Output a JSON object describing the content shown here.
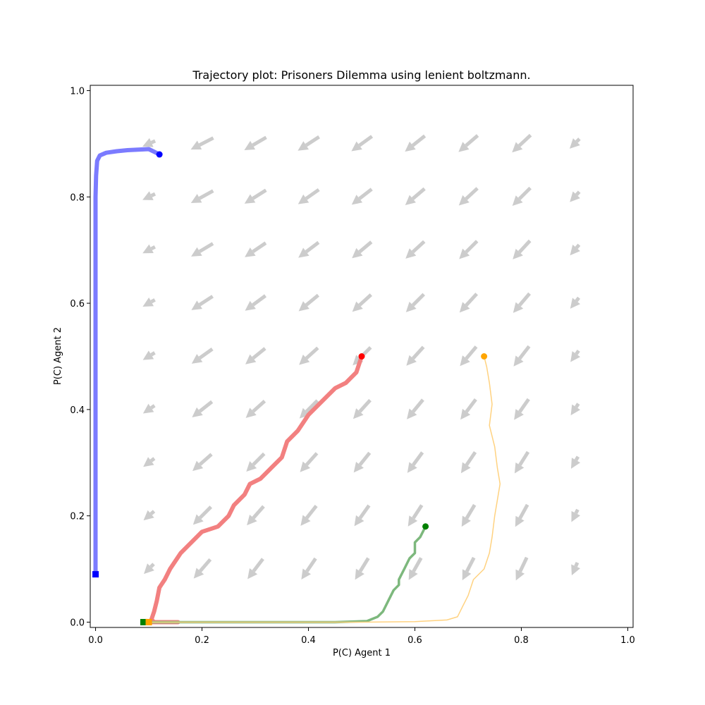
{
  "chart_data": {
    "type": "line",
    "title": "Trajectory plot: Prisoners Dilemma using lenient boltzmann.",
    "xlabel": "P(C) Agent 1",
    "ylabel": "P(C) Agent 2",
    "xlim": [
      -0.01,
      1.01
    ],
    "ylim": [
      -0.01,
      1.01
    ],
    "xticks": [
      "0.0",
      "0.2",
      "0.4",
      "0.6",
      "0.8",
      "1.0"
    ],
    "yticks": [
      "0.0",
      "0.2",
      "0.4",
      "0.6",
      "0.8",
      "1.0"
    ],
    "grid": false,
    "legend": "none",
    "vector_field": {
      "color": "#cccccc",
      "x": [
        0.1,
        0.2,
        0.3,
        0.4,
        0.5,
        0.6,
        0.7,
        0.8,
        0.9
      ],
      "y": [
        0.1,
        0.2,
        0.3,
        0.4,
        0.5,
        0.6,
        0.7,
        0.8,
        0.9
      ]
    },
    "series": [
      {
        "color": "#7b7bff",
        "end_color": "#0000ff",
        "width": "thick",
        "start": [
          0.12,
          0.88
        ],
        "end": [
          0.0,
          0.09
        ],
        "points": [
          [
            0.12,
            0.88
          ],
          [
            0.11,
            0.885
          ],
          [
            0.1,
            0.89
          ],
          [
            0.08,
            0.889
          ],
          [
            0.06,
            0.888
          ],
          [
            0.04,
            0.886
          ],
          [
            0.02,
            0.883
          ],
          [
            0.008,
            0.878
          ],
          [
            0.003,
            0.868
          ],
          [
            0.001,
            0.84
          ],
          [
            0.0,
            0.8
          ],
          [
            0.0,
            0.6
          ],
          [
            0.0,
            0.4
          ],
          [
            0.0,
            0.2
          ],
          [
            0.0,
            0.09
          ]
        ]
      },
      {
        "color": "#f28080",
        "end_color": "#ff0000",
        "width": "thick",
        "start": [
          0.5,
          0.5
        ],
        "end": [
          0.1,
          0.0
        ],
        "points": [
          [
            0.5,
            0.5
          ],
          [
            0.49,
            0.47
          ],
          [
            0.47,
            0.45
          ],
          [
            0.45,
            0.44
          ],
          [
            0.43,
            0.42
          ],
          [
            0.4,
            0.39
          ],
          [
            0.38,
            0.36
          ],
          [
            0.36,
            0.34
          ],
          [
            0.35,
            0.31
          ],
          [
            0.33,
            0.29
          ],
          [
            0.31,
            0.27
          ],
          [
            0.29,
            0.26
          ],
          [
            0.28,
            0.24
          ],
          [
            0.26,
            0.22
          ],
          [
            0.25,
            0.2
          ],
          [
            0.23,
            0.18
          ],
          [
            0.2,
            0.17
          ],
          [
            0.18,
            0.15
          ],
          [
            0.16,
            0.13
          ],
          [
            0.14,
            0.1
          ],
          [
            0.13,
            0.08
          ],
          [
            0.12,
            0.065
          ],
          [
            0.115,
            0.04
          ],
          [
            0.11,
            0.02
          ],
          [
            0.105,
            0.005
          ],
          [
            0.11,
            0.0
          ],
          [
            0.155,
            0.0
          ],
          [
            0.1,
            0.0
          ]
        ]
      },
      {
        "color": "#7db87d",
        "end_color": "#008000",
        "width": "medium",
        "start": [
          0.62,
          0.18
        ],
        "end": [
          0.09,
          0.0
        ],
        "points": [
          [
            0.62,
            0.18
          ],
          [
            0.61,
            0.16
          ],
          [
            0.6,
            0.15
          ],
          [
            0.6,
            0.13
          ],
          [
            0.59,
            0.12
          ],
          [
            0.58,
            0.1
          ],
          [
            0.57,
            0.08
          ],
          [
            0.57,
            0.07
          ],
          [
            0.56,
            0.06
          ],
          [
            0.55,
            0.04
          ],
          [
            0.54,
            0.02
          ],
          [
            0.53,
            0.01
          ],
          [
            0.51,
            0.002
          ],
          [
            0.45,
            0.0
          ],
          [
            0.3,
            0.0
          ],
          [
            0.15,
            0.0
          ],
          [
            0.09,
            0.0
          ]
        ]
      },
      {
        "color": "#ffd280",
        "end_color": "#ffa500",
        "width": "thin",
        "start": [
          0.73,
          0.5
        ],
        "end": [
          0.1,
          0.0
        ],
        "points": [
          [
            0.73,
            0.5
          ],
          [
            0.735,
            0.48
          ],
          [
            0.74,
            0.45
          ],
          [
            0.745,
            0.41
          ],
          [
            0.74,
            0.37
          ],
          [
            0.75,
            0.33
          ],
          [
            0.755,
            0.29
          ],
          [
            0.76,
            0.26
          ],
          [
            0.755,
            0.23
          ],
          [
            0.75,
            0.2
          ],
          [
            0.745,
            0.16
          ],
          [
            0.74,
            0.13
          ],
          [
            0.73,
            0.1
          ],
          [
            0.71,
            0.08
          ],
          [
            0.7,
            0.05
          ],
          [
            0.69,
            0.03
          ],
          [
            0.68,
            0.01
          ],
          [
            0.66,
            0.004
          ],
          [
            0.6,
            0.001
          ],
          [
            0.5,
            0.0
          ],
          [
            0.3,
            0.0
          ],
          [
            0.1,
            0.0
          ]
        ]
      }
    ]
  }
}
